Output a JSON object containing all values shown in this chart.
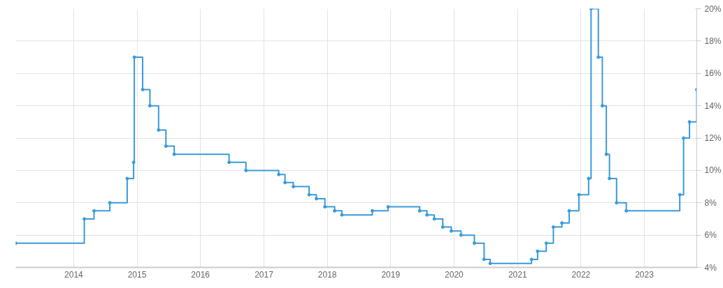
{
  "chart_data": {
    "type": "step",
    "marker": "circle",
    "grid": true,
    "x": [
      "2013-02-01",
      "2014-03-03",
      "2014-04-28",
      "2014-07-28",
      "2014-11-05",
      "2014-12-12",
      "2014-12-16",
      "2015-02-02",
      "2015-03-16",
      "2015-05-05",
      "2015-06-16",
      "2015-08-03",
      "2016-06-14",
      "2016-09-19",
      "2017-03-27",
      "2017-05-02",
      "2017-06-19",
      "2017-09-18",
      "2017-10-30",
      "2017-12-18",
      "2018-02-12",
      "2018-03-26",
      "2018-09-17",
      "2018-12-17",
      "2019-06-17",
      "2019-07-29",
      "2019-09-09",
      "2019-10-28",
      "2019-12-16",
      "2020-02-10",
      "2020-04-27",
      "2020-06-22",
      "2020-07-27",
      "2021-03-22",
      "2021-04-26",
      "2021-06-15",
      "2021-07-26",
      "2021-09-13",
      "2021-10-25",
      "2021-12-20",
      "2022-02-14",
      "2022-02-28",
      "2022-04-11",
      "2022-05-04",
      "2022-05-27",
      "2022-06-14",
      "2022-07-25",
      "2022-09-19",
      "2023-07-24",
      "2023-08-15",
      "2023-09-18",
      "2023-10-30"
    ],
    "series": [
      {
        "color": "#3a9ad9",
        "values": [
          5.5,
          7.0,
          7.5,
          8.0,
          9.5,
          10.5,
          17.0,
          15.0,
          14.0,
          12.5,
          11.5,
          11.0,
          10.5,
          10.0,
          9.75,
          9.25,
          9.0,
          8.5,
          8.25,
          7.75,
          7.5,
          7.25,
          7.5,
          7.75,
          7.5,
          7.25,
          7.0,
          6.5,
          6.25,
          6.0,
          5.5,
          4.5,
          4.25,
          4.5,
          5.0,
          5.5,
          6.5,
          6.75,
          7.5,
          8.5,
          9.5,
          20.0,
          17.0,
          14.0,
          11.0,
          9.5,
          8.0,
          7.5,
          8.5,
          12.0,
          13.0,
          15.0
        ]
      }
    ],
    "xlim": [
      "2013-02-01",
      "2023-10-30"
    ],
    "xticks": [
      "2014",
      "2015",
      "2016",
      "2017",
      "2018",
      "2019",
      "2020",
      "2021",
      "2022",
      "2023"
    ],
    "ylim": [
      4,
      20
    ],
    "yticks": [
      {
        "value": 4,
        "label": "4%"
      },
      {
        "value": 6,
        "label": "6%"
      },
      {
        "value": 8,
        "label": "8%"
      },
      {
        "value": 10,
        "label": "10%"
      },
      {
        "value": 12,
        "label": "12%"
      },
      {
        "value": 14,
        "label": "14%"
      },
      {
        "value": 16,
        "label": "16%"
      },
      {
        "value": 18,
        "label": "18%"
      },
      {
        "value": 20,
        "label": "20%"
      }
    ]
  }
}
